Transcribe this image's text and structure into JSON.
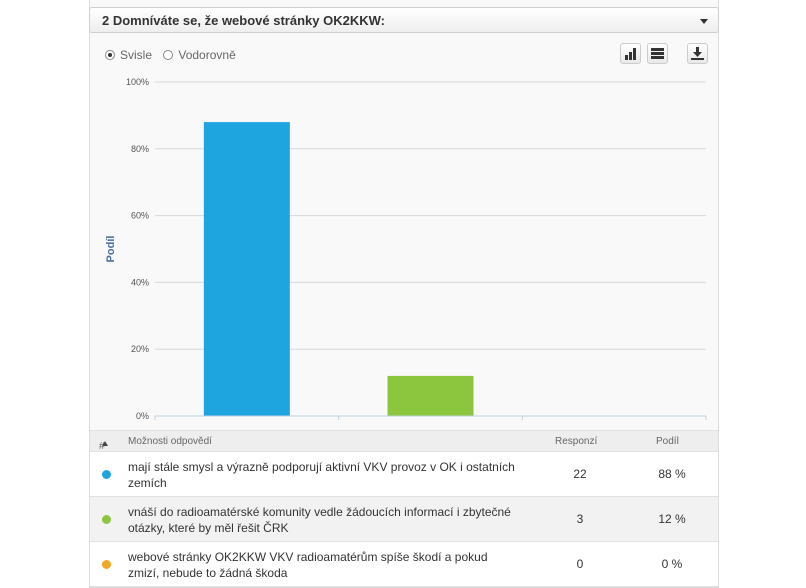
{
  "question": {
    "title": "2 Domníváte se, že webové stránky OK2KKW:"
  },
  "orientation": {
    "options": [
      "Svisle",
      "Vodorovně"
    ],
    "selected": "Svisle"
  },
  "toolbar": {
    "icons": [
      "bar-chart-icon",
      "table-icon",
      "download-icon"
    ]
  },
  "table": {
    "headers": {
      "num": "#",
      "options": "Možnosti odpovědí",
      "responses": "Responzí",
      "share": "Podíl"
    },
    "rows": [
      {
        "text": "mají stále smysl a výrazně podporují aktivní VKV provoz v OK i ostatních zemích",
        "responses": "22",
        "share": "88 %",
        "color": "#1ea5e0"
      },
      {
        "text": "vnáší do radioamatérské komunity vedle žádoucích informací i zbytečné otázky, které by měl řešit ČRK",
        "responses": "3",
        "share": "12 %",
        "color": "#8cc63f"
      },
      {
        "text": "webové stránky OK2KKW VKV radioamatérům spíše škodí a pokud zmizí, nebude to žádná škoda",
        "responses": "0",
        "share": "0 %",
        "color": "#f5a623"
      }
    ]
  },
  "chart_data": {
    "type": "bar",
    "categories": [
      "mají stále smysl a výrazně podporují aktivní VKV provoz v OK i ostatních zemích",
      "vnáší do radioamatérské komunity vedle žádoucích informací i zbytečné otázky, které by měl řešit ČRK",
      "webové stránky OK2KKW VKV radioamatérům spíše škodí a pokud zmizí, nebude to žádná škoda"
    ],
    "values": [
      88,
      12,
      0
    ],
    "colors": [
      "#1ea5e0",
      "#8cc63f",
      "#f5a623"
    ],
    "ylabel": "Podíl",
    "yticks": [
      "0%",
      "20%",
      "40%",
      "60%",
      "80%",
      "100%"
    ],
    "ylim": [
      0,
      100
    ],
    "grid": true,
    "legend": "none"
  }
}
